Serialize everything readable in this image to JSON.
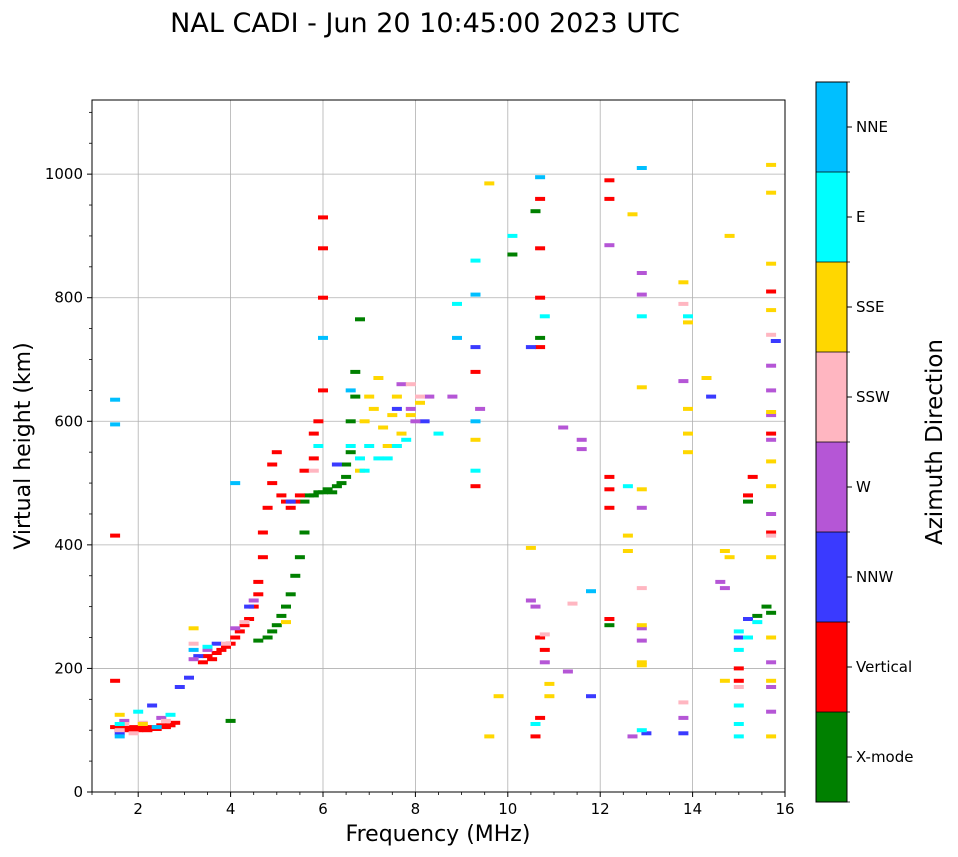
{
  "chart_data": {
    "type": "scatter",
    "title": "NAL CADI - Jun 20 10:45:00 2023 UTC",
    "xlabel": "Frequency (MHz)",
    "ylabel": "Virtual height (km)",
    "xlim": [
      1,
      16
    ],
    "ylim": [
      0,
      1120
    ],
    "xticks": [
      2,
      4,
      6,
      8,
      10,
      12,
      14,
      16
    ],
    "yticks": [
      0,
      200,
      400,
      600,
      800,
      1000
    ],
    "grid": true,
    "colorbar": {
      "title": "Azimuth Direction",
      "categories": [
        "X-mode",
        "Vertical",
        "NNW",
        "W",
        "SSW",
        "SSE",
        "E",
        "NNE"
      ],
      "colors": [
        "#008000",
        "#ff0000",
        "#3a3aff",
        "#b556d6",
        "#ffb6c1",
        "#ffd700",
        "#00ffff",
        "#00bfff"
      ]
    },
    "series": [
      {
        "name": "X-mode",
        "points": [
          [
            4.0,
            115
          ],
          [
            4.6,
            245
          ],
          [
            4.8,
            250
          ],
          [
            4.9,
            260
          ],
          [
            5.0,
            270
          ],
          [
            5.1,
            285
          ],
          [
            5.2,
            300
          ],
          [
            5.3,
            320
          ],
          [
            5.4,
            350
          ],
          [
            5.5,
            380
          ],
          [
            5.6,
            420
          ],
          [
            5.6,
            470
          ],
          [
            5.7,
            480
          ],
          [
            5.8,
            480
          ],
          [
            5.9,
            485
          ],
          [
            6.0,
            485
          ],
          [
            6.1,
            490
          ],
          [
            6.2,
            485
          ],
          [
            6.3,
            495
          ],
          [
            6.4,
            500
          ],
          [
            6.5,
            510
          ],
          [
            6.5,
            530
          ],
          [
            6.6,
            550
          ],
          [
            6.6,
            600
          ],
          [
            6.7,
            640
          ],
          [
            6.7,
            680
          ],
          [
            6.8,
            765
          ],
          [
            10.1,
            870
          ],
          [
            10.7,
            735
          ],
          [
            10.6,
            940
          ],
          [
            12.2,
            270
          ],
          [
            15.2,
            470
          ],
          [
            15.4,
            285
          ],
          [
            15.6,
            300
          ],
          [
            15.7,
            290
          ]
        ]
      },
      {
        "name": "Vertical",
        "points": [
          [
            1.5,
            105
          ],
          [
            1.6,
            100
          ],
          [
            1.7,
            105
          ],
          [
            1.8,
            100
          ],
          [
            1.9,
            105
          ],
          [
            2.0,
            100
          ],
          [
            2.1,
            105
          ],
          [
            2.2,
            100
          ],
          [
            2.3,
            105
          ],
          [
            2.4,
            102
          ],
          [
            2.5,
            108
          ],
          [
            2.6,
            105
          ],
          [
            2.7,
            108
          ],
          [
            2.8,
            112
          ],
          [
            1.5,
            180
          ],
          [
            1.5,
            415
          ],
          [
            3.4,
            210
          ],
          [
            3.5,
            220
          ],
          [
            3.6,
            215
          ],
          [
            3.7,
            225
          ],
          [
            3.8,
            230
          ],
          [
            3.9,
            235
          ],
          [
            4.0,
            240
          ],
          [
            4.1,
            250
          ],
          [
            4.2,
            260
          ],
          [
            4.3,
            270
          ],
          [
            4.4,
            280
          ],
          [
            4.5,
            300
          ],
          [
            4.6,
            320
          ],
          [
            4.6,
            340
          ],
          [
            4.7,
            380
          ],
          [
            4.7,
            420
          ],
          [
            4.8,
            460
          ],
          [
            4.9,
            500
          ],
          [
            4.9,
            530
          ],
          [
            5.0,
            550
          ],
          [
            5.1,
            480
          ],
          [
            5.2,
            470
          ],
          [
            5.3,
            460
          ],
          [
            5.4,
            470
          ],
          [
            5.5,
            480
          ],
          [
            5.6,
            520
          ],
          [
            5.8,
            540
          ],
          [
            5.8,
            580
          ],
          [
            5.9,
            600
          ],
          [
            6.0,
            650
          ],
          [
            6.0,
            800
          ],
          [
            6.0,
            880
          ],
          [
            6.0,
            930
          ],
          [
            9.3,
            680
          ],
          [
            9.3,
            495
          ],
          [
            10.6,
            90
          ],
          [
            10.7,
            120
          ],
          [
            10.7,
            250
          ],
          [
            10.8,
            230
          ],
          [
            10.7,
            800
          ],
          [
            10.7,
            720
          ],
          [
            10.7,
            880
          ],
          [
            10.7,
            960
          ],
          [
            12.2,
            460
          ],
          [
            12.2,
            490
          ],
          [
            12.2,
            510
          ],
          [
            12.2,
            960
          ],
          [
            12.2,
            990
          ],
          [
            12.2,
            280
          ],
          [
            15.0,
            180
          ],
          [
            15.0,
            200
          ],
          [
            15.2,
            480
          ],
          [
            15.3,
            510
          ],
          [
            15.7,
            580
          ],
          [
            15.7,
            420
          ],
          [
            15.7,
            810
          ]
        ]
      },
      {
        "name": "NNW",
        "points": [
          [
            1.6,
            95
          ],
          [
            2.3,
            140
          ],
          [
            2.9,
            170
          ],
          [
            3.1,
            185
          ],
          [
            3.3,
            220
          ],
          [
            3.7,
            240
          ],
          [
            4.4,
            300
          ],
          [
            5.3,
            470
          ],
          [
            6.3,
            530
          ],
          [
            7.6,
            620
          ],
          [
            8.2,
            600
          ],
          [
            9.3,
            720
          ],
          [
            10.5,
            720
          ],
          [
            11.8,
            155
          ],
          [
            13.0,
            95
          ],
          [
            13.8,
            95
          ],
          [
            14.4,
            640
          ],
          [
            15.0,
            250
          ],
          [
            15.2,
            280
          ],
          [
            15.8,
            730
          ]
        ]
      },
      {
        "name": "W",
        "points": [
          [
            1.7,
            115
          ],
          [
            2.5,
            120
          ],
          [
            3.2,
            215
          ],
          [
            3.5,
            230
          ],
          [
            4.1,
            265
          ],
          [
            4.5,
            310
          ],
          [
            7.7,
            660
          ],
          [
            7.9,
            620
          ],
          [
            8.0,
            600
          ],
          [
            8.3,
            640
          ],
          [
            8.8,
            640
          ],
          [
            9.4,
            620
          ],
          [
            10.5,
            310
          ],
          [
            10.6,
            300
          ],
          [
            10.8,
            210
          ],
          [
            11.2,
            590
          ],
          [
            11.3,
            195
          ],
          [
            11.6,
            570
          ],
          [
            11.6,
            555
          ],
          [
            12.2,
            885
          ],
          [
            12.7,
            90
          ],
          [
            12.9,
            265
          ],
          [
            12.9,
            245
          ],
          [
            12.9,
            460
          ],
          [
            12.9,
            805
          ],
          [
            12.9,
            840
          ],
          [
            13.8,
            120
          ],
          [
            13.8,
            665
          ],
          [
            14.6,
            340
          ],
          [
            14.7,
            330
          ],
          [
            15.7,
            130
          ],
          [
            15.7,
            170
          ],
          [
            15.7,
            210
          ],
          [
            15.7,
            450
          ],
          [
            15.7,
            570
          ],
          [
            15.7,
            610
          ],
          [
            15.7,
            650
          ],
          [
            15.7,
            690
          ]
        ]
      },
      {
        "name": "SSW",
        "points": [
          [
            1.6,
            100
          ],
          [
            1.7,
            110
          ],
          [
            1.9,
            95
          ],
          [
            2.1,
            112
          ],
          [
            2.6,
            115
          ],
          [
            3.2,
            240
          ],
          [
            3.9,
            240
          ],
          [
            4.3,
            275
          ],
          [
            5.8,
            520
          ],
          [
            7.9,
            660
          ],
          [
            8.1,
            640
          ],
          [
            10.8,
            255
          ],
          [
            11.4,
            305
          ],
          [
            12.9,
            330
          ],
          [
            13.8,
            145
          ],
          [
            13.8,
            790
          ],
          [
            15.0,
            170
          ],
          [
            15.7,
            415
          ],
          [
            15.7,
            740
          ]
        ]
      },
      {
        "name": "SSE",
        "points": [
          [
            1.6,
            125
          ],
          [
            2.1,
            110
          ],
          [
            3.2,
            265
          ],
          [
            5.2,
            275
          ],
          [
            6.8,
            520
          ],
          [
            6.9,
            600
          ],
          [
            7.0,
            640
          ],
          [
            7.1,
            620
          ],
          [
            7.2,
            670
          ],
          [
            7.3,
            590
          ],
          [
            7.4,
            560
          ],
          [
            7.5,
            610
          ],
          [
            7.6,
            640
          ],
          [
            7.7,
            580
          ],
          [
            7.9,
            610
          ],
          [
            8.1,
            630
          ],
          [
            9.3,
            570
          ],
          [
            9.6,
            985
          ],
          [
            9.8,
            155
          ],
          [
            9.6,
            90
          ],
          [
            10.5,
            395
          ],
          [
            10.9,
            175
          ],
          [
            10.9,
            155
          ],
          [
            12.6,
            415
          ],
          [
            12.6,
            390
          ],
          [
            12.7,
            935
          ],
          [
            12.9,
            655
          ],
          [
            12.9,
            490
          ],
          [
            12.9,
            270
          ],
          [
            12.9,
            210
          ],
          [
            12.9,
            205
          ],
          [
            13.8,
            825
          ],
          [
            13.9,
            550
          ],
          [
            13.9,
            580
          ],
          [
            13.9,
            620
          ],
          [
            13.9,
            760
          ],
          [
            14.3,
            670
          ],
          [
            14.7,
            180
          ],
          [
            14.7,
            390
          ],
          [
            14.8,
            380
          ],
          [
            14.8,
            900
          ],
          [
            15.7,
            90
          ],
          [
            15.7,
            180
          ],
          [
            15.7,
            250
          ],
          [
            15.7,
            380
          ],
          [
            15.7,
            495
          ],
          [
            15.7,
            535
          ],
          [
            15.7,
            615
          ],
          [
            15.7,
            780
          ],
          [
            15.7,
            855
          ],
          [
            15.7,
            970
          ],
          [
            15.7,
            1015
          ]
        ]
      },
      {
        "name": "E",
        "points": [
          [
            1.6,
            110
          ],
          [
            2.0,
            130
          ],
          [
            2.7,
            125
          ],
          [
            3.5,
            235
          ],
          [
            5.9,
            560
          ],
          [
            6.6,
            560
          ],
          [
            6.8,
            540
          ],
          [
            6.9,
            520
          ],
          [
            7.0,
            560
          ],
          [
            7.2,
            540
          ],
          [
            7.4,
            540
          ],
          [
            7.6,
            560
          ],
          [
            7.8,
            570
          ],
          [
            8.5,
            580
          ],
          [
            8.9,
            790
          ],
          [
            9.3,
            520
          ],
          [
            9.3,
            860
          ],
          [
            10.1,
            900
          ],
          [
            10.6,
            110
          ],
          [
            10.8,
            770
          ],
          [
            12.6,
            495
          ],
          [
            12.9,
            100
          ],
          [
            12.9,
            770
          ],
          [
            13.9,
            770
          ],
          [
            15.0,
            90
          ],
          [
            15.0,
            110
          ],
          [
            15.0,
            140
          ],
          [
            15.0,
            230
          ],
          [
            15.0,
            260
          ],
          [
            15.2,
            250
          ],
          [
            15.4,
            275
          ]
        ]
      },
      {
        "name": "NNE",
        "points": [
          [
            1.5,
            635
          ],
          [
            1.5,
            595
          ],
          [
            1.6,
            90
          ],
          [
            2.4,
            105
          ],
          [
            3.2,
            230
          ],
          [
            4.1,
            500
          ],
          [
            6.0,
            735
          ],
          [
            6.6,
            650
          ],
          [
            8.9,
            735
          ],
          [
            9.3,
            805
          ],
          [
            9.3,
            600
          ],
          [
            10.7,
            995
          ],
          [
            11.8,
            325
          ],
          [
            12.9,
            1010
          ]
        ]
      }
    ]
  }
}
